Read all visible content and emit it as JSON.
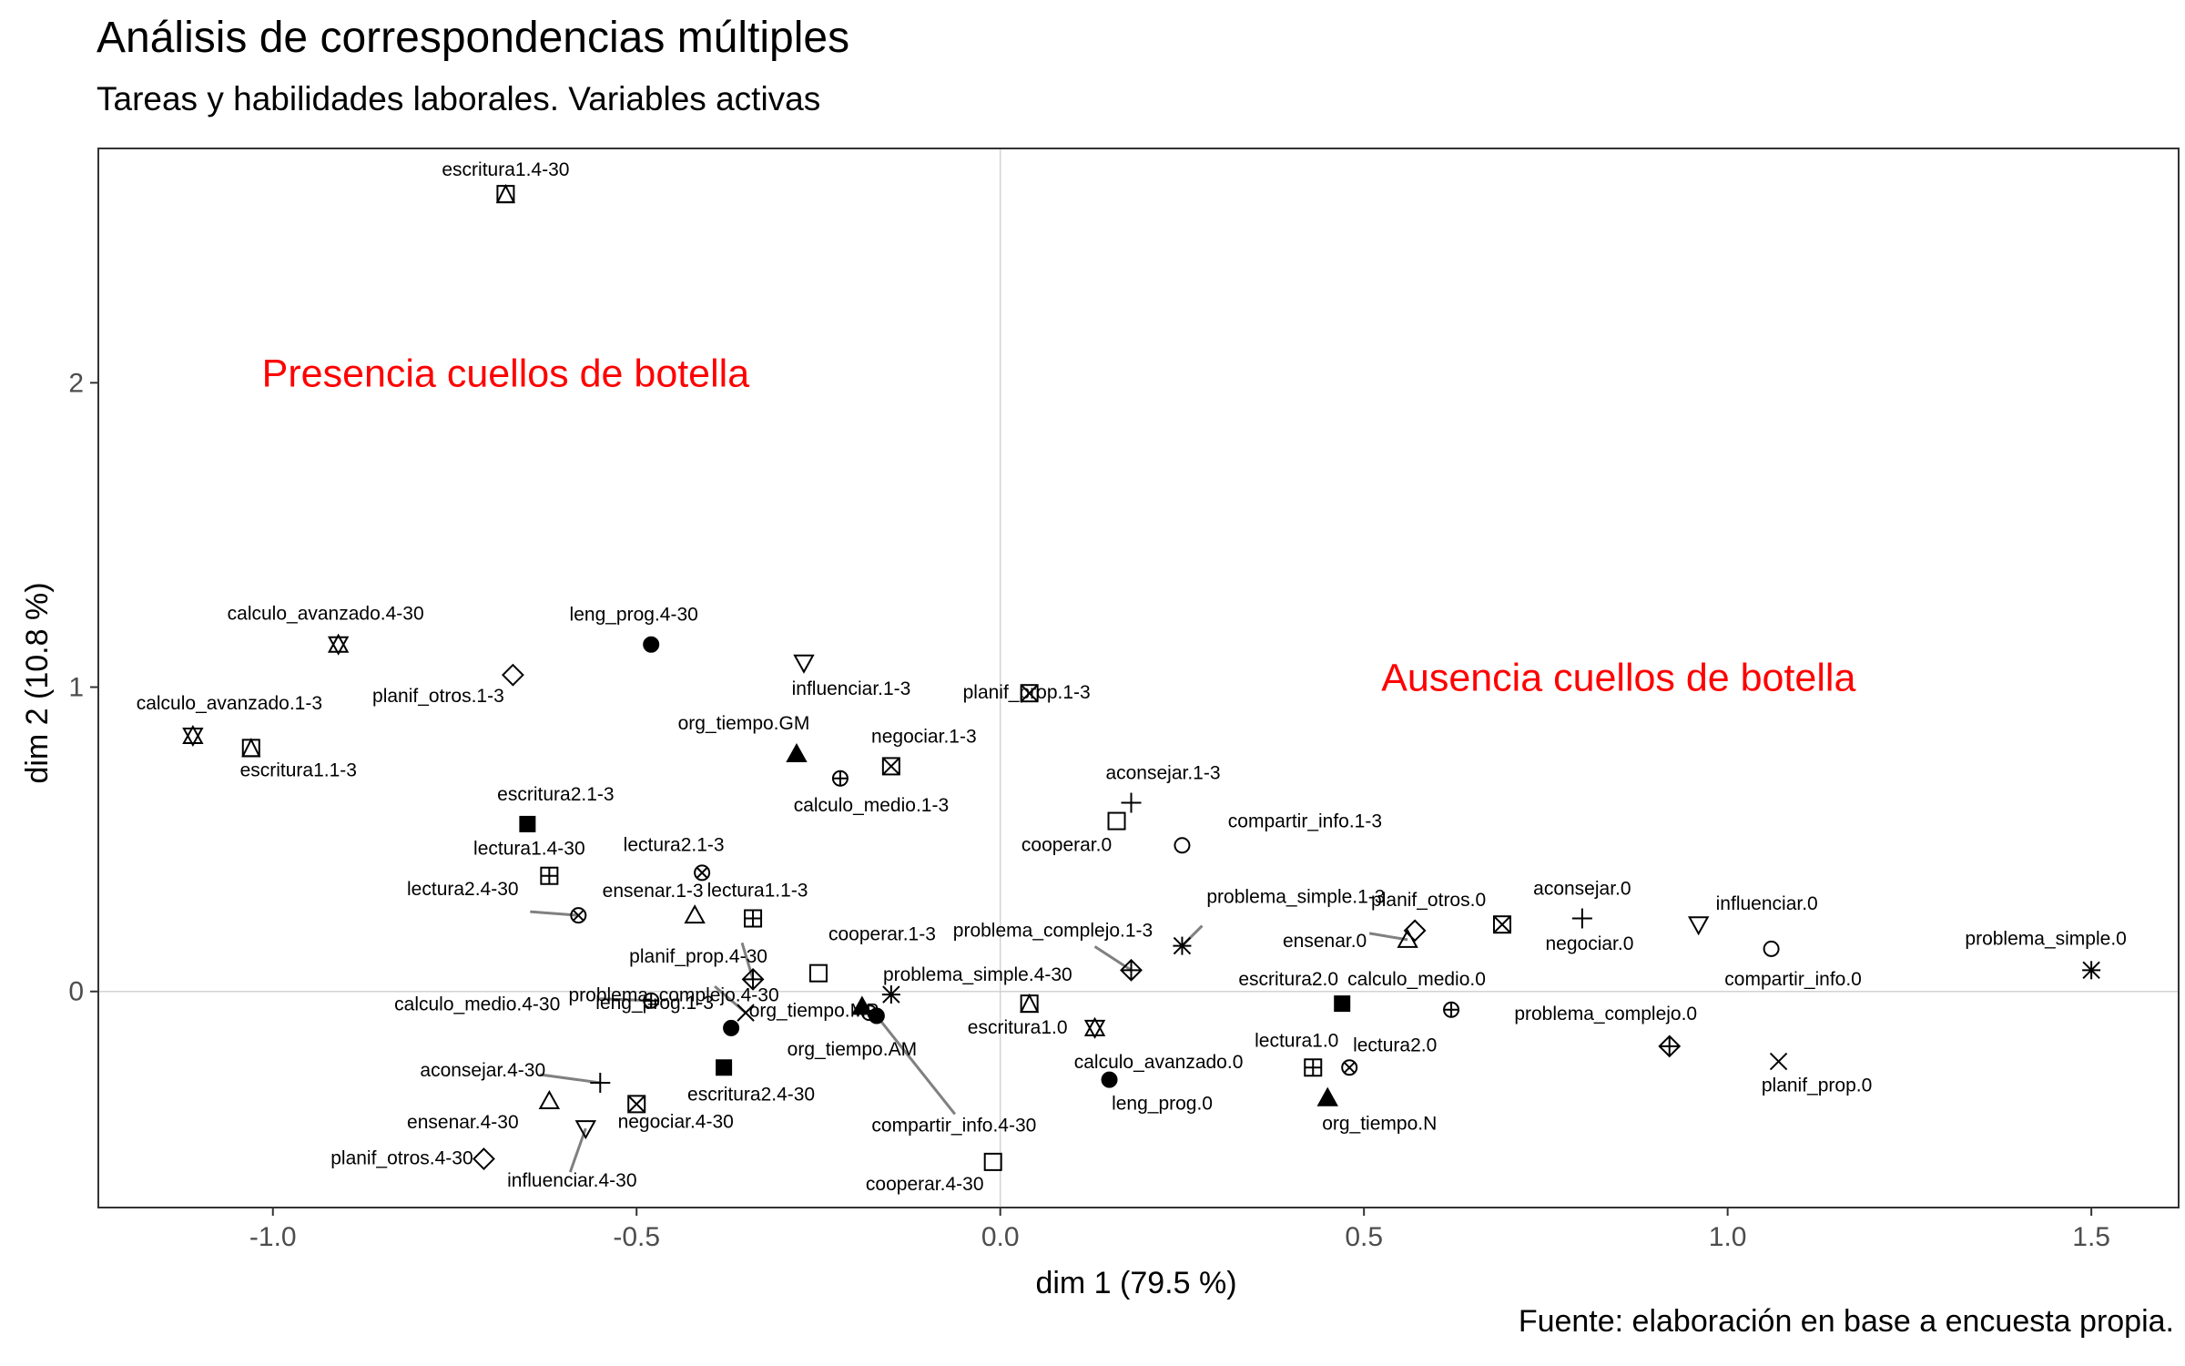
{
  "chart_data": {
    "type": "scatter",
    "title": "Análisis de correspondencias múltiples",
    "subtitle": "Tareas y habilidades laborales. Variables activas",
    "caption": "Fuente: elaboración en base a encuesta propia.",
    "xlabel": "dim 1 (79.5 %)",
    "ylabel": "dim 2 (10.8 %)",
    "xlim": [
      -1.24,
      1.62
    ],
    "ylim": [
      -0.71,
      2.77
    ],
    "xticks": [
      -1.0,
      -0.5,
      0.0,
      0.5,
      1.0,
      1.5
    ],
    "xtick_labels": [
      "-1.0",
      "-0.5",
      "0.0",
      "0.5",
      "1.0",
      "1.5"
    ],
    "yticks": [
      0,
      1,
      2
    ],
    "ytick_labels": [
      "0",
      "1",
      "2"
    ],
    "grid": false,
    "reference_lines": {
      "x": 0,
      "y": 0
    },
    "legend": "none",
    "annotations": [
      {
        "text": "Presencia cuellos de botella",
        "x": -0.68,
        "y": 2.03,
        "color": "#ff0000"
      },
      {
        "text": "Ausencia cuellos de botella",
        "x": 0.85,
        "y": 1.03,
        "color": "#ff0000"
      }
    ],
    "points": [
      {
        "label": "escritura1.4-30",
        "x": -0.68,
        "y": 2.62,
        "shape": "square-triangle"
      },
      {
        "label": "calculo_avanzado.4-30",
        "x": -0.91,
        "y": 1.14,
        "shape": "star-of-david"
      },
      {
        "label": "leng_prog.4-30",
        "x": -0.48,
        "y": 1.14,
        "shape": "circle-filled"
      },
      {
        "label": "planif_otros.1-3",
        "x": -0.67,
        "y": 1.04,
        "shape": "diamond"
      },
      {
        "label": "influenciar.1-3",
        "x": -0.27,
        "y": 1.08,
        "shape": "triangle-down"
      },
      {
        "label": "planif_prop.1-3",
        "x": 0.04,
        "y": 0.98,
        "shape": "square-x"
      },
      {
        "label": "calculo_avanzado.1-3",
        "x": -1.11,
        "y": 0.84,
        "shape": "star-of-david"
      },
      {
        "label": "escritura1.1-3",
        "x": -1.03,
        "y": 0.8,
        "shape": "square-triangle"
      },
      {
        "label": "org_tiempo.GM",
        "x": -0.28,
        "y": 0.78,
        "shape": "triangle-filled"
      },
      {
        "label": "negociar.1-3",
        "x": -0.15,
        "y": 0.74,
        "shape": "square-x"
      },
      {
        "label": "calculo_medio.1-3",
        "x": -0.22,
        "y": 0.7,
        "shape": "circle-plus"
      },
      {
        "label": "aconsejar.1-3",
        "x": 0.18,
        "y": 0.62,
        "shape": "plus"
      },
      {
        "label": "cooperar.0",
        "x": 0.16,
        "y": 0.56,
        "shape": "square"
      },
      {
        "label": "compartir_info.1-3",
        "x": 0.25,
        "y": 0.48,
        "shape": "circle"
      },
      {
        "label": "escritura2.1-3",
        "x": -0.65,
        "y": 0.55,
        "shape": "square-filled"
      },
      {
        "label": "lectura1.4-30",
        "x": -0.62,
        "y": 0.38,
        "shape": "square-plus"
      },
      {
        "label": "lectura2.1-3",
        "x": -0.41,
        "y": 0.39,
        "shape": "circle-x"
      },
      {
        "label": "lectura2.4-30",
        "x": -0.58,
        "y": 0.25,
        "shape": "circle-x"
      },
      {
        "label": "ensenar.1-3",
        "x": -0.42,
        "y": 0.25,
        "shape": "triangle"
      },
      {
        "label": "lectura1.1-3",
        "x": -0.34,
        "y": 0.24,
        "shape": "square-plus"
      },
      {
        "label": "problema_complejo.4-30",
        "x": -0.34,
        "y": 0.04,
        "shape": "diamond-plus"
      },
      {
        "label": "cooperar.1-3",
        "x": -0.25,
        "y": 0.06,
        "shape": "square"
      },
      {
        "label": "problema_simple.1-3",
        "x": 0.25,
        "y": 0.15,
        "shape": "asterisk"
      },
      {
        "label": "problema_complejo.1-3",
        "x": 0.18,
        "y": 0.07,
        "shape": "diamond-plus"
      },
      {
        "label": "problema_simple.4-30",
        "x": -0.15,
        "y": -0.01,
        "shape": "asterisk"
      },
      {
        "label": "planif_prop.4-30",
        "x": -0.35,
        "y": -0.07,
        "shape": "cross"
      },
      {
        "label": "calculo_medio.4-30",
        "x": -0.48,
        "y": -0.03,
        "shape": "circle-plus"
      },
      {
        "label": "org_tiempo.MP",
        "x": -0.19,
        "y": -0.05,
        "shape": "triangle-filled"
      },
      {
        "label": "org_tiempo.AM",
        "x": -0.18,
        "y": -0.07,
        "shape": "circle"
      },
      {
        "label": "compartir_info.4-30",
        "x": -0.17,
        "y": -0.08,
        "shape": "circle-filled"
      },
      {
        "label": "escritura1.0",
        "x": 0.04,
        "y": -0.04,
        "shape": "square-triangle"
      },
      {
        "label": "leng_prog.1-3",
        "x": -0.37,
        "y": -0.12,
        "shape": "circle-filled"
      },
      {
        "label": "calculo_avanzado.0",
        "x": 0.13,
        "y": -0.12,
        "shape": "star-of-david"
      },
      {
        "label": "escritura2.4-30",
        "x": -0.38,
        "y": -0.25,
        "shape": "square-filled"
      },
      {
        "label": "leng_prog.0",
        "x": 0.15,
        "y": -0.29,
        "shape": "circle-filled"
      },
      {
        "label": "escritura2.0",
        "x": 0.47,
        "y": -0.04,
        "shape": "square-filled"
      },
      {
        "label": "calculo_medio.0",
        "x": 0.62,
        "y": -0.06,
        "shape": "circle-plus"
      },
      {
        "label": "lectura1.0",
        "x": 0.43,
        "y": -0.25,
        "shape": "square-plus"
      },
      {
        "label": "lectura2.0",
        "x": 0.48,
        "y": -0.25,
        "shape": "circle-x"
      },
      {
        "label": "org_tiempo.N",
        "x": 0.45,
        "y": -0.35,
        "shape": "triangle-filled"
      },
      {
        "label": "ensenar.0",
        "x": 0.56,
        "y": 0.17,
        "shape": "triangle"
      },
      {
        "label": "planif_otros.0",
        "x": 0.57,
        "y": 0.2,
        "shape": "diamond"
      },
      {
        "label": "negociar.0",
        "x": 0.69,
        "y": 0.22,
        "shape": "square-x"
      },
      {
        "label": "aconsejar.0",
        "x": 0.8,
        "y": 0.24,
        "shape": "plus"
      },
      {
        "label": "influenciar.0",
        "x": 0.96,
        "y": 0.22,
        "shape": "triangle-down"
      },
      {
        "label": "compartir_info.0",
        "x": 1.06,
        "y": 0.14,
        "shape": "circle"
      },
      {
        "label": "problema_simple.0",
        "x": 1.5,
        "y": 0.07,
        "shape": "asterisk"
      },
      {
        "label": "problema_complejo.0",
        "x": 0.92,
        "y": -0.18,
        "shape": "diamond-plus"
      },
      {
        "label": "planif_prop.0",
        "x": 1.07,
        "y": -0.23,
        "shape": "cross"
      },
      {
        "label": "aconsejar.4-30",
        "x": -0.55,
        "y": -0.3,
        "shape": "plus"
      },
      {
        "label": "ensenar.4-30",
        "x": -0.62,
        "y": -0.36,
        "shape": "triangle"
      },
      {
        "label": "negociar.4-30",
        "x": -0.5,
        "y": -0.37,
        "shape": "square-x"
      },
      {
        "label": "influenciar.4-30",
        "x": -0.57,
        "y": -0.45,
        "shape": "triangle-down"
      },
      {
        "label": "planif_otros.4-30",
        "x": -0.71,
        "y": -0.55,
        "shape": "diamond"
      },
      {
        "label": "cooperar.4-30",
        "x": -0.01,
        "y": -0.56,
        "shape": "square"
      }
    ]
  }
}
